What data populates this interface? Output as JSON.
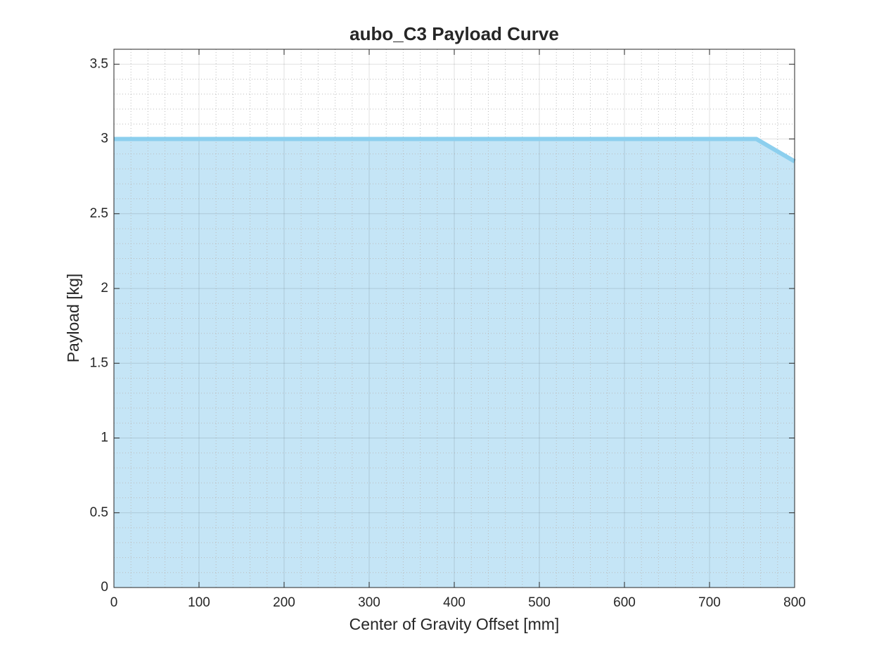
{
  "chart_data": {
    "type": "area",
    "title": "aubo_C3 Payload Curve",
    "x_label": "Center of Gravity Offset [mm]",
    "y_label": "Payload [kg]",
    "x": [
      0,
      755,
      800
    ],
    "values": [
      3,
      3,
      2.85
    ],
    "color": "#8ccfee",
    "fill_color": "#c5e5f6",
    "xlim": [
      0,
      800
    ],
    "xticks": [
      0,
      100,
      200,
      300,
      400,
      500,
      600,
      700,
      800
    ],
    "ylim": [
      0,
      3.6
    ],
    "yticks": [
      0,
      0.5,
      1,
      1.5,
      2,
      2.5,
      3,
      3.5
    ],
    "grid": true,
    "minor_grid": true
  }
}
